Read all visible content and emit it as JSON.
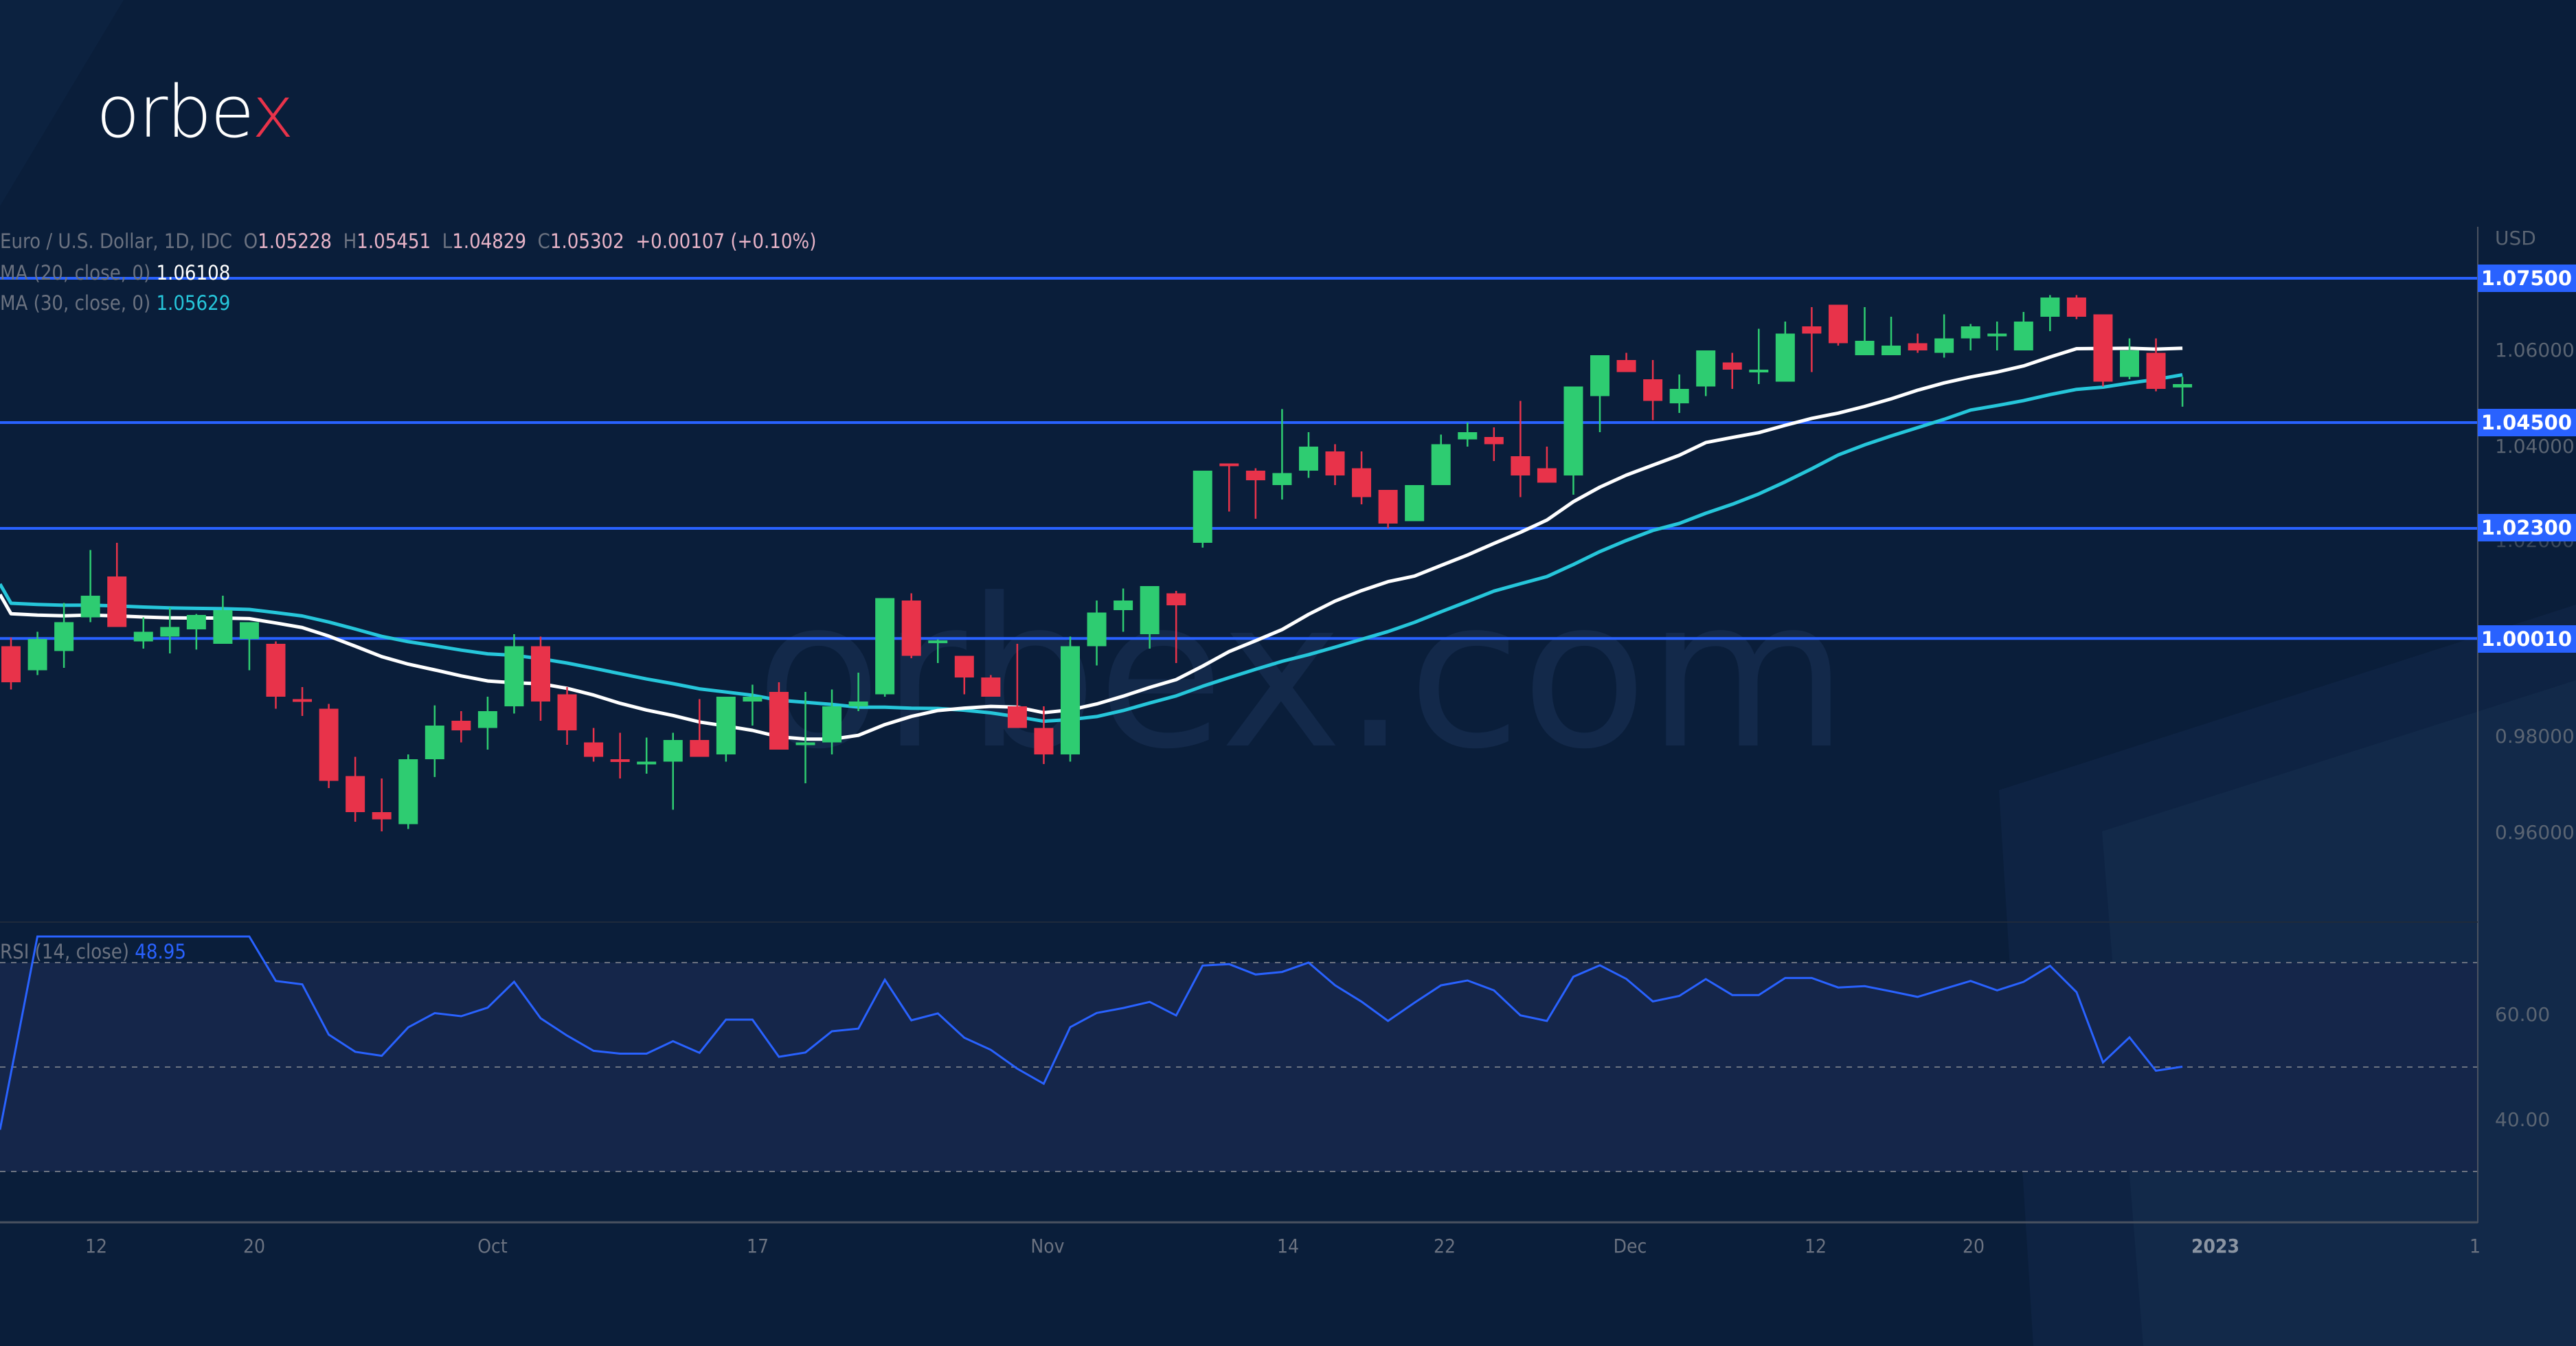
{
  "brand": {
    "logo_text_main": "orbe",
    "logo_text_accent": "x",
    "watermark": "orbex.com"
  },
  "legend": {
    "symbol": "Euro / U.S. Dollar, 1D, IDC",
    "o_label": "O",
    "open": "1.05228",
    "h_label": "H",
    "high": "1.05451",
    "l_label": "L",
    "low": "1.04829",
    "c_label": "C",
    "close": "1.05302",
    "change": "+0.00107 (+0.10%)",
    "ma20_label": "MA (20, close, 0)",
    "ma20_value": "1.06108",
    "ma30_label": "MA (30, close, 0)",
    "ma30_value": "1.05629",
    "rsi_label": "RSI (14, close)",
    "rsi_value": "48.95"
  },
  "price_axis": {
    "currency": "USD",
    "ticks": [
      "1.06000",
      "1.04000",
      "1.02000",
      "0.98000",
      "0.96000"
    ],
    "level_tags": [
      "1.07500",
      "1.04500",
      "1.02300",
      "1.00010"
    ]
  },
  "rsi_axis": {
    "ticks": [
      "60.00",
      "40.00"
    ]
  },
  "time_axis": {
    "labels": [
      "12",
      "20",
      "Oct",
      "17",
      "Nov",
      "14",
      "22",
      "Dec",
      "12",
      "20",
      "2023",
      "1"
    ]
  },
  "colors": {
    "background": "#0a1e3a",
    "up": "#2ecc71",
    "down": "#e8334a",
    "ma20": "#ffffff",
    "ma30": "#26c6da",
    "level": "#2962ff",
    "rsi": "#2962ff"
  },
  "chart_data": {
    "type": "candlestick",
    "title": "Euro / U.S. Dollar, 1D, IDC",
    "ylabel": "USD",
    "ylim": [
      0.95,
      1.08
    ],
    "horizontal_levels": [
      1.075,
      1.045,
      1.023,
      1.0001
    ],
    "x_labels": [
      "12",
      "20",
      "Oct",
      "17",
      "Nov",
      "14",
      "22",
      "Dec",
      "12",
      "20",
      "2023",
      "1"
    ],
    "candles": [
      [
        0.9985,
        1.0003,
        0.9895,
        0.991
      ],
      [
        0.9935,
        1.0015,
        0.9925,
        1.0
      ],
      [
        0.9975,
        1.0075,
        0.994,
        1.0035
      ],
      [
        1.0045,
        1.0185,
        1.0035,
        1.009
      ],
      [
        1.013,
        1.02,
        1.006,
        1.0025
      ],
      [
        0.9995,
        1.0045,
        0.998,
        1.0015
      ],
      [
        1.0005,
        1.0065,
        0.997,
        1.0025
      ],
      [
        1.002,
        1.0052,
        0.9978,
        1.005
      ],
      [
        0.999,
        1.009,
        0.999,
        1.006
      ],
      [
        1.0,
        1.0025,
        0.9935,
        1.0035
      ],
      [
        0.999,
        0.9995,
        0.9855,
        0.988
      ],
      [
        0.9875,
        0.99,
        0.984,
        0.987
      ],
      [
        0.9855,
        0.9865,
        0.969,
        0.9705
      ],
      [
        0.9715,
        0.9755,
        0.962,
        0.964
      ],
      [
        0.964,
        0.971,
        0.96,
        0.9625
      ],
      [
        0.9615,
        0.976,
        0.9605,
        0.975
      ],
      [
        0.975,
        0.9862,
        0.9713,
        0.982
      ],
      [
        0.983,
        0.985,
        0.9785,
        0.981
      ],
      [
        0.9815,
        0.988,
        0.977,
        0.985
      ],
      [
        0.986,
        1.001,
        0.9845,
        0.9985
      ],
      [
        0.9985,
        1.0005,
        0.983,
        0.987
      ],
      [
        0.9885,
        0.99,
        0.978,
        0.981
      ],
      [
        0.9785,
        0.9815,
        0.9745,
        0.9755
      ],
      [
        0.975,
        0.9805,
        0.971,
        0.9745
      ],
      [
        0.9745,
        0.9795,
        0.972,
        0.9745
      ],
      [
        0.9745,
        0.9805,
        0.9645,
        0.979
      ],
      [
        0.979,
        0.9875,
        0.977,
        0.9755
      ],
      [
        0.976,
        0.9875,
        0.9745,
        0.988
      ],
      [
        0.987,
        0.9905,
        0.982,
        0.988
      ],
      [
        0.989,
        0.991,
        0.981,
        0.977
      ],
      [
        0.978,
        0.989,
        0.97,
        0.9785
      ],
      [
        0.9785,
        0.9895,
        0.976,
        0.986
      ],
      [
        0.986,
        0.993,
        0.985,
        0.987
      ],
      [
        0.9885,
        1.0085,
        0.988,
        1.0085
      ],
      [
        1.008,
        1.0095,
        0.996,
        0.9965
      ],
      [
        0.9995,
        0.9999,
        0.995,
        0.9997
      ],
      [
        0.9965,
        0.996,
        0.9885,
        0.992
      ],
      [
        0.992,
        0.9925,
        0.989,
        0.988
      ],
      [
        0.986,
        0.999,
        0.985,
        0.9815
      ],
      [
        0.9815,
        0.986,
        0.974,
        0.976
      ],
      [
        0.976,
        1.0005,
        0.9745,
        0.9985
      ],
      [
        0.9985,
        1.008,
        0.9945,
        1.0055
      ],
      [
        1.006,
        1.0105,
        1.0015,
        1.008
      ],
      [
        1.001,
        1.0105,
        0.998,
        1.011
      ],
      [
        1.0095,
        1.01,
        0.995,
        1.007
      ],
      [
        1.02,
        1.029,
        1.019,
        1.035
      ],
      [
        1.0365,
        1.0365,
        1.0265,
        1.036
      ],
      [
        1.035,
        1.0355,
        1.025,
        1.033
      ],
      [
        1.032,
        1.0478,
        1.029,
        1.0345
      ],
      [
        1.035,
        1.043,
        1.0335,
        1.04
      ],
      [
        1.039,
        1.0405,
        1.032,
        1.034
      ],
      [
        1.0355,
        1.039,
        1.028,
        1.0295
      ],
      [
        1.031,
        1.031,
        1.023,
        1.024
      ],
      [
        1.0245,
        1.031,
        1.0245,
        1.032
      ],
      [
        1.032,
        1.0425,
        1.032,
        1.0405
      ],
      [
        1.0415,
        1.045,
        1.04,
        1.043
      ],
      [
        1.042,
        1.044,
        1.037,
        1.0405
      ],
      [
        1.038,
        1.0495,
        1.0295,
        1.034
      ],
      [
        1.0355,
        1.04,
        1.0325,
        1.0325
      ],
      [
        1.034,
        1.046,
        1.03,
        1.0525
      ],
      [
        1.0505,
        1.059,
        1.043,
        1.059
      ],
      [
        1.058,
        1.0595,
        1.056,
        1.0555
      ],
      [
        1.054,
        1.058,
        1.0455,
        1.0495
      ],
      [
        1.049,
        1.055,
        1.047,
        1.052
      ],
      [
        1.0525,
        1.0555,
        1.0505,
        1.06
      ],
      [
        1.0575,
        1.0595,
        1.052,
        1.056
      ],
      [
        1.056,
        1.0645,
        1.053,
        1.056
      ],
      [
        1.0535,
        1.066,
        1.0535,
        1.0635
      ],
      [
        1.065,
        1.069,
        1.0555,
        1.0635
      ],
      [
        1.0695,
        1.0695,
        1.061,
        1.0615
      ],
      [
        1.059,
        1.069,
        1.059,
        1.062
      ],
      [
        1.059,
        1.067,
        1.059,
        1.061
      ],
      [
        1.0615,
        1.0635,
        1.0595,
        1.06
      ],
      [
        1.0595,
        1.0675,
        1.0585,
        1.0625
      ],
      [
        1.0625,
        1.0655,
        1.06,
        1.065
      ],
      [
        1.063,
        1.066,
        1.06,
        1.0635
      ],
      [
        1.06,
        1.068,
        1.06,
        1.066
      ],
      [
        1.067,
        1.0715,
        1.064,
        1.071
      ],
      [
        1.071,
        1.0715,
        1.0665,
        1.067
      ],
      [
        1.0675,
        1.0655,
        1.0525,
        1.0535
      ],
      [
        1.0545,
        1.0625,
        1.054,
        1.06
      ],
      [
        1.0595,
        1.0625,
        1.0515,
        1.052
      ],
      [
        1.0523,
        1.0545,
        1.0483,
        1.053
      ]
    ],
    "ma20_last": 1.06108,
    "ma30_last": 1.05629,
    "rsi": {
      "label": "RSI (14, close)",
      "last": 48.95,
      "levels": [
        70,
        50,
        30
      ],
      "ticks": [
        60,
        40
      ]
    }
  }
}
